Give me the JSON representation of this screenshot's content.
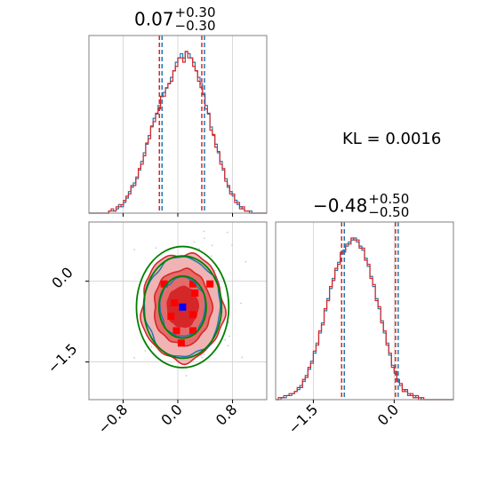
{
  "chart_data": {
    "type": "corner",
    "kl_label": "KL = 0.0016",
    "colors": {
      "blue": "#1f77b4",
      "red": "#d62728",
      "green": "#008000",
      "grid": "#d0d0d0",
      "marker": "#0000ff"
    },
    "param1": {
      "title_value": "0.07",
      "title_plus": "+0.30",
      "title_minus": "−0.30",
      "xlim": [
        -1.3,
        1.3
      ],
      "ticks": [
        -0.8,
        0.0,
        0.8
      ],
      "tick_labels": [
        "−0.8",
        "0.0",
        "0.8"
      ],
      "quantile_lines": [
        -0.25,
        0.37
      ]
    },
    "param2": {
      "title_value": "−0.48",
      "title_plus": "+0.50",
      "title_minus": "−0.50",
      "xlim": [
        -2.2,
        1.1
      ],
      "ticks": [
        -1.5,
        0.0
      ],
      "tick_labels": [
        "−1.5",
        "0.0"
      ],
      "quantile_lines": [
        -0.95,
        0.05
      ]
    },
    "hist1": {
      "bin_edges": [
        -1.3,
        1.3
      ],
      "blue": [
        0,
        0,
        0,
        0,
        0,
        0,
        0,
        0,
        1,
        1,
        1,
        2,
        4,
        3,
        5,
        7,
        10,
        12,
        14,
        16,
        20,
        24,
        28,
        32,
        36,
        40,
        44,
        46,
        50,
        54,
        56,
        58,
        60,
        63,
        66,
        70,
        72,
        74,
        72,
        75,
        74,
        72,
        70,
        66,
        63,
        60,
        55,
        50,
        46,
        40,
        36,
        32,
        28,
        24,
        20,
        16,
        12,
        10,
        8,
        6,
        4,
        3,
        2,
        1,
        1,
        1,
        0,
        0,
        0,
        0,
        0,
        0
      ],
      "red": [
        0,
        0,
        0,
        0,
        0,
        0,
        0,
        0,
        1,
        2,
        1,
        3,
        3,
        4,
        6,
        8,
        9,
        13,
        13,
        17,
        21,
        23,
        27,
        33,
        35,
        41,
        43,
        47,
        49,
        55,
        55,
        59,
        61,
        62,
        67,
        69,
        73,
        73,
        71,
        76,
        73,
        73,
        69,
        67,
        62,
        59,
        56,
        49,
        47,
        39,
        37,
        31,
        29,
        23,
        21,
        15,
        13,
        9,
        9,
        5,
        5,
        2,
        3,
        1,
        1,
        0,
        0,
        0,
        0,
        0,
        0,
        0
      ]
    },
    "hist2": {
      "bin_edges": [
        -2.2,
        1.1
      ],
      "blue": [
        0,
        0,
        1,
        1,
        2,
        2,
        3,
        4,
        5,
        7,
        9,
        12,
        15,
        19,
        23,
        28,
        33,
        38,
        44,
        50,
        55,
        60,
        64,
        68,
        72,
        74,
        76,
        78,
        79,
        80,
        78,
        76,
        74,
        70,
        66,
        61,
        56,
        50,
        45,
        39,
        33,
        28,
        22,
        17,
        13,
        10,
        7,
        5,
        4,
        3,
        2,
        2,
        1,
        1,
        0,
        0,
        0,
        0,
        0,
        0,
        0,
        0,
        0,
        0,
        0,
        0
      ],
      "red": [
        0,
        1,
        1,
        2,
        2,
        3,
        3,
        4,
        6,
        6,
        10,
        11,
        16,
        18,
        24,
        27,
        34,
        37,
        45,
        49,
        56,
        59,
        65,
        67,
        73,
        73,
        77,
        77,
        80,
        79,
        79,
        75,
        75,
        69,
        67,
        60,
        57,
        49,
        46,
        38,
        34,
        27,
        23,
        16,
        14,
        9,
        8,
        4,
        5,
        2,
        3,
        1,
        2,
        0,
        1,
        0,
        0,
        0,
        0,
        0,
        0,
        0,
        0,
        0,
        0,
        0
      ]
    },
    "joint": {
      "xlim": [
        -1.3,
        1.3
      ],
      "ylim": [
        -2.2,
        1.1
      ],
      "mean": [
        0.07,
        -0.48
      ],
      "std": [
        0.3,
        0.5
      ],
      "red_levels_sigma": [
        0.75,
        1.4,
        2.0
      ],
      "green_levels_sigma": [
        1.15,
        1.9,
        2.25
      ],
      "blue_levels_sigma": [
        1.1,
        1.85
      ]
    }
  }
}
